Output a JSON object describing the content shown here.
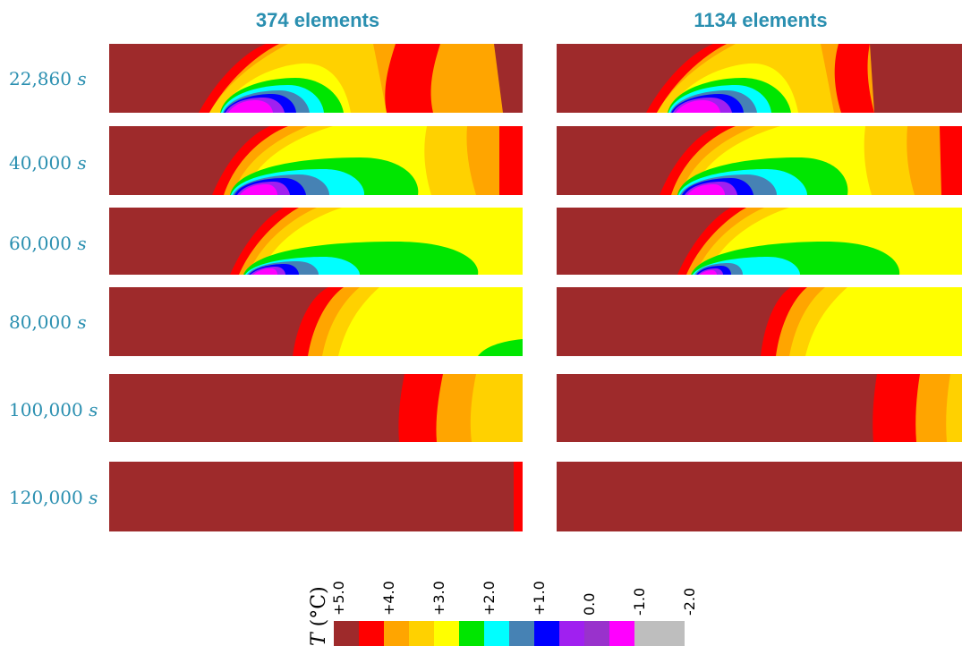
{
  "columns": [
    {
      "title": "374 elements"
    },
    {
      "title": "1134 elements"
    }
  ],
  "rows": [
    {
      "time": "22,860",
      "unit": "s"
    },
    {
      "time": "40,000",
      "unit": "s"
    },
    {
      "time": "60,000",
      "unit": "s"
    },
    {
      "time": "80,000",
      "unit": "s"
    },
    {
      "time": "100,000",
      "unit": "s"
    },
    {
      "time": "120,000",
      "unit": "s"
    }
  ],
  "legend": {
    "symbol": "T",
    "unit": "(°C)",
    "ticks": [
      "+5.0",
      "+4.0",
      "+3.0",
      "+2.0",
      "+1.0",
      "0.0",
      "-1.0",
      "-2.0"
    ],
    "colors": [
      "#9E2A2B",
      "#FF0000",
      "#FFA500",
      "#FFD100",
      "#FFFF00",
      "#00E600",
      "#00FFFF",
      "#4682B4",
      "#0000FF",
      "#A020F0",
      "#9932CC",
      "#FF00FF",
      "#BEBEBE",
      "#BEBEBE"
    ]
  }
}
